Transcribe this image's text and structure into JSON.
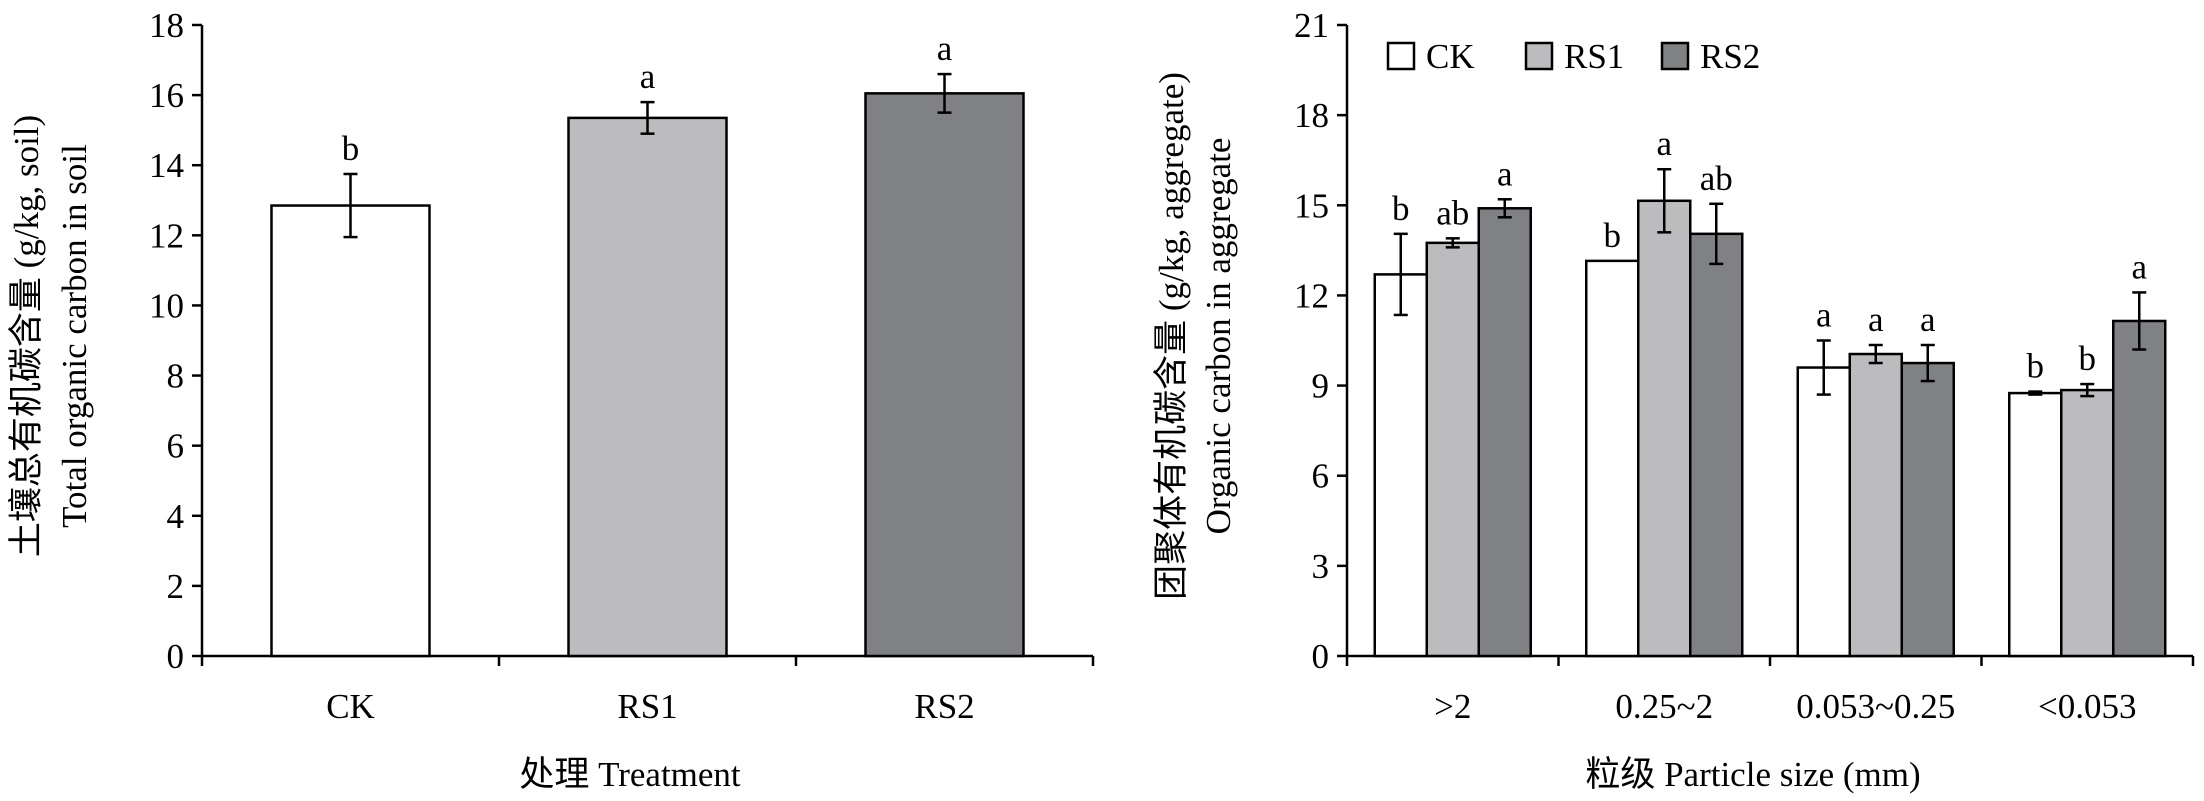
{
  "chart_data": [
    {
      "type": "bar",
      "categories": [
        "CK",
        "RS1",
        "RS2"
      ],
      "values": [
        12.85,
        15.35,
        16.05
      ],
      "errors": [
        0.9,
        0.45,
        0.55
      ],
      "significance": [
        "b",
        "a",
        "a"
      ],
      "colors": [
        "#ffffff",
        "#bcbcbf",
        "#808184"
      ],
      "ylabel_zh": "土壤总有机碳含量 (g/kg, soil)",
      "ylabel_en": "Total organic carbon in soil",
      "xlabel": "处理 Treatment",
      "ylim": [
        0,
        18
      ],
      "yticks": [
        "0",
        "2",
        "4",
        "6",
        "8",
        "10",
        "12",
        "14",
        "16",
        "18"
      ]
    },
    {
      "type": "bar",
      "categories": [
        ">2",
        "0.25~2",
        "0.053~0.25",
        "<0.053"
      ],
      "series": [
        {
          "name": "CK",
          "color": "#ffffff",
          "values": [
            12.7,
            13.15,
            9.6,
            8.75
          ],
          "errors": [
            1.35,
            0.0,
            0.9,
            0.05
          ],
          "significance": [
            "b",
            "b",
            "a",
            "b"
          ]
        },
        {
          "name": "RS1",
          "color": "#bcbcbf",
          "values": [
            13.75,
            15.15,
            10.05,
            8.85
          ],
          "errors": [
            0.15,
            1.05,
            0.3,
            0.2
          ],
          "significance": [
            "ab",
            "a",
            "a",
            "b"
          ]
        },
        {
          "name": "RS2",
          "color": "#808184",
          "values": [
            14.9,
            14.05,
            9.75,
            11.15
          ],
          "errors": [
            0.3,
            1.0,
            0.6,
            0.95
          ],
          "significance": [
            "a",
            "ab",
            "a",
            "a"
          ]
        }
      ],
      "ylabel_zh": "团聚体有机碳含量 (g/kg, aggregate)",
      "ylabel_en": "Organic carbon in aggregate",
      "xlabel": "粒级 Particle size (mm)",
      "ylim": [
        0,
        21
      ],
      "yticks": [
        "0",
        "3",
        "6",
        "9",
        "12",
        "15",
        "18",
        "21"
      ],
      "legend_position": "top-left"
    }
  ]
}
